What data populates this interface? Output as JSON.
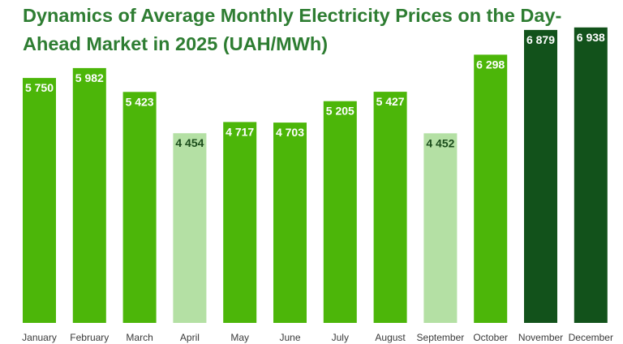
{
  "chart_data": {
    "type": "bar",
    "title": "Dynamics of Average Monthly Electricity Prices on the Day-Ahead Market in 2025 (UAH/MWh)",
    "categories": [
      "January",
      "February",
      "March",
      "April",
      "May",
      "June",
      "July",
      "August",
      "September",
      "October",
      "November",
      "December"
    ],
    "values": [
      5750,
      5982,
      5423,
      4454,
      4717,
      4703,
      5205,
      5427,
      4452,
      6298,
      6879,
      6938
    ],
    "value_labels": [
      "5 750",
      "5 982",
      "5 423",
      "4 454",
      "4 717",
      "4 703",
      "5 205",
      "5 427",
      "4 452",
      "6 298",
      "6 879",
      "6 938"
    ],
    "bar_colors": [
      "#4cb609",
      "#4cb609",
      "#4cb609",
      "#b4e0a4",
      "#4cb609",
      "#4cb609",
      "#4cb609",
      "#4cb609",
      "#b4e0a4",
      "#4cb609",
      "#12521b",
      "#12521b"
    ],
    "label_colors": [
      "#ffffff",
      "#ffffff",
      "#ffffff",
      "#1b4d1b",
      "#ffffff",
      "#ffffff",
      "#ffffff",
      "#ffffff",
      "#1b4d1b",
      "#ffffff",
      "#ffffff",
      "#ffffff"
    ],
    "title_color": "#2e7d32",
    "ylim": [
      0,
      7200
    ],
    "grid": false,
    "legend": "none"
  }
}
